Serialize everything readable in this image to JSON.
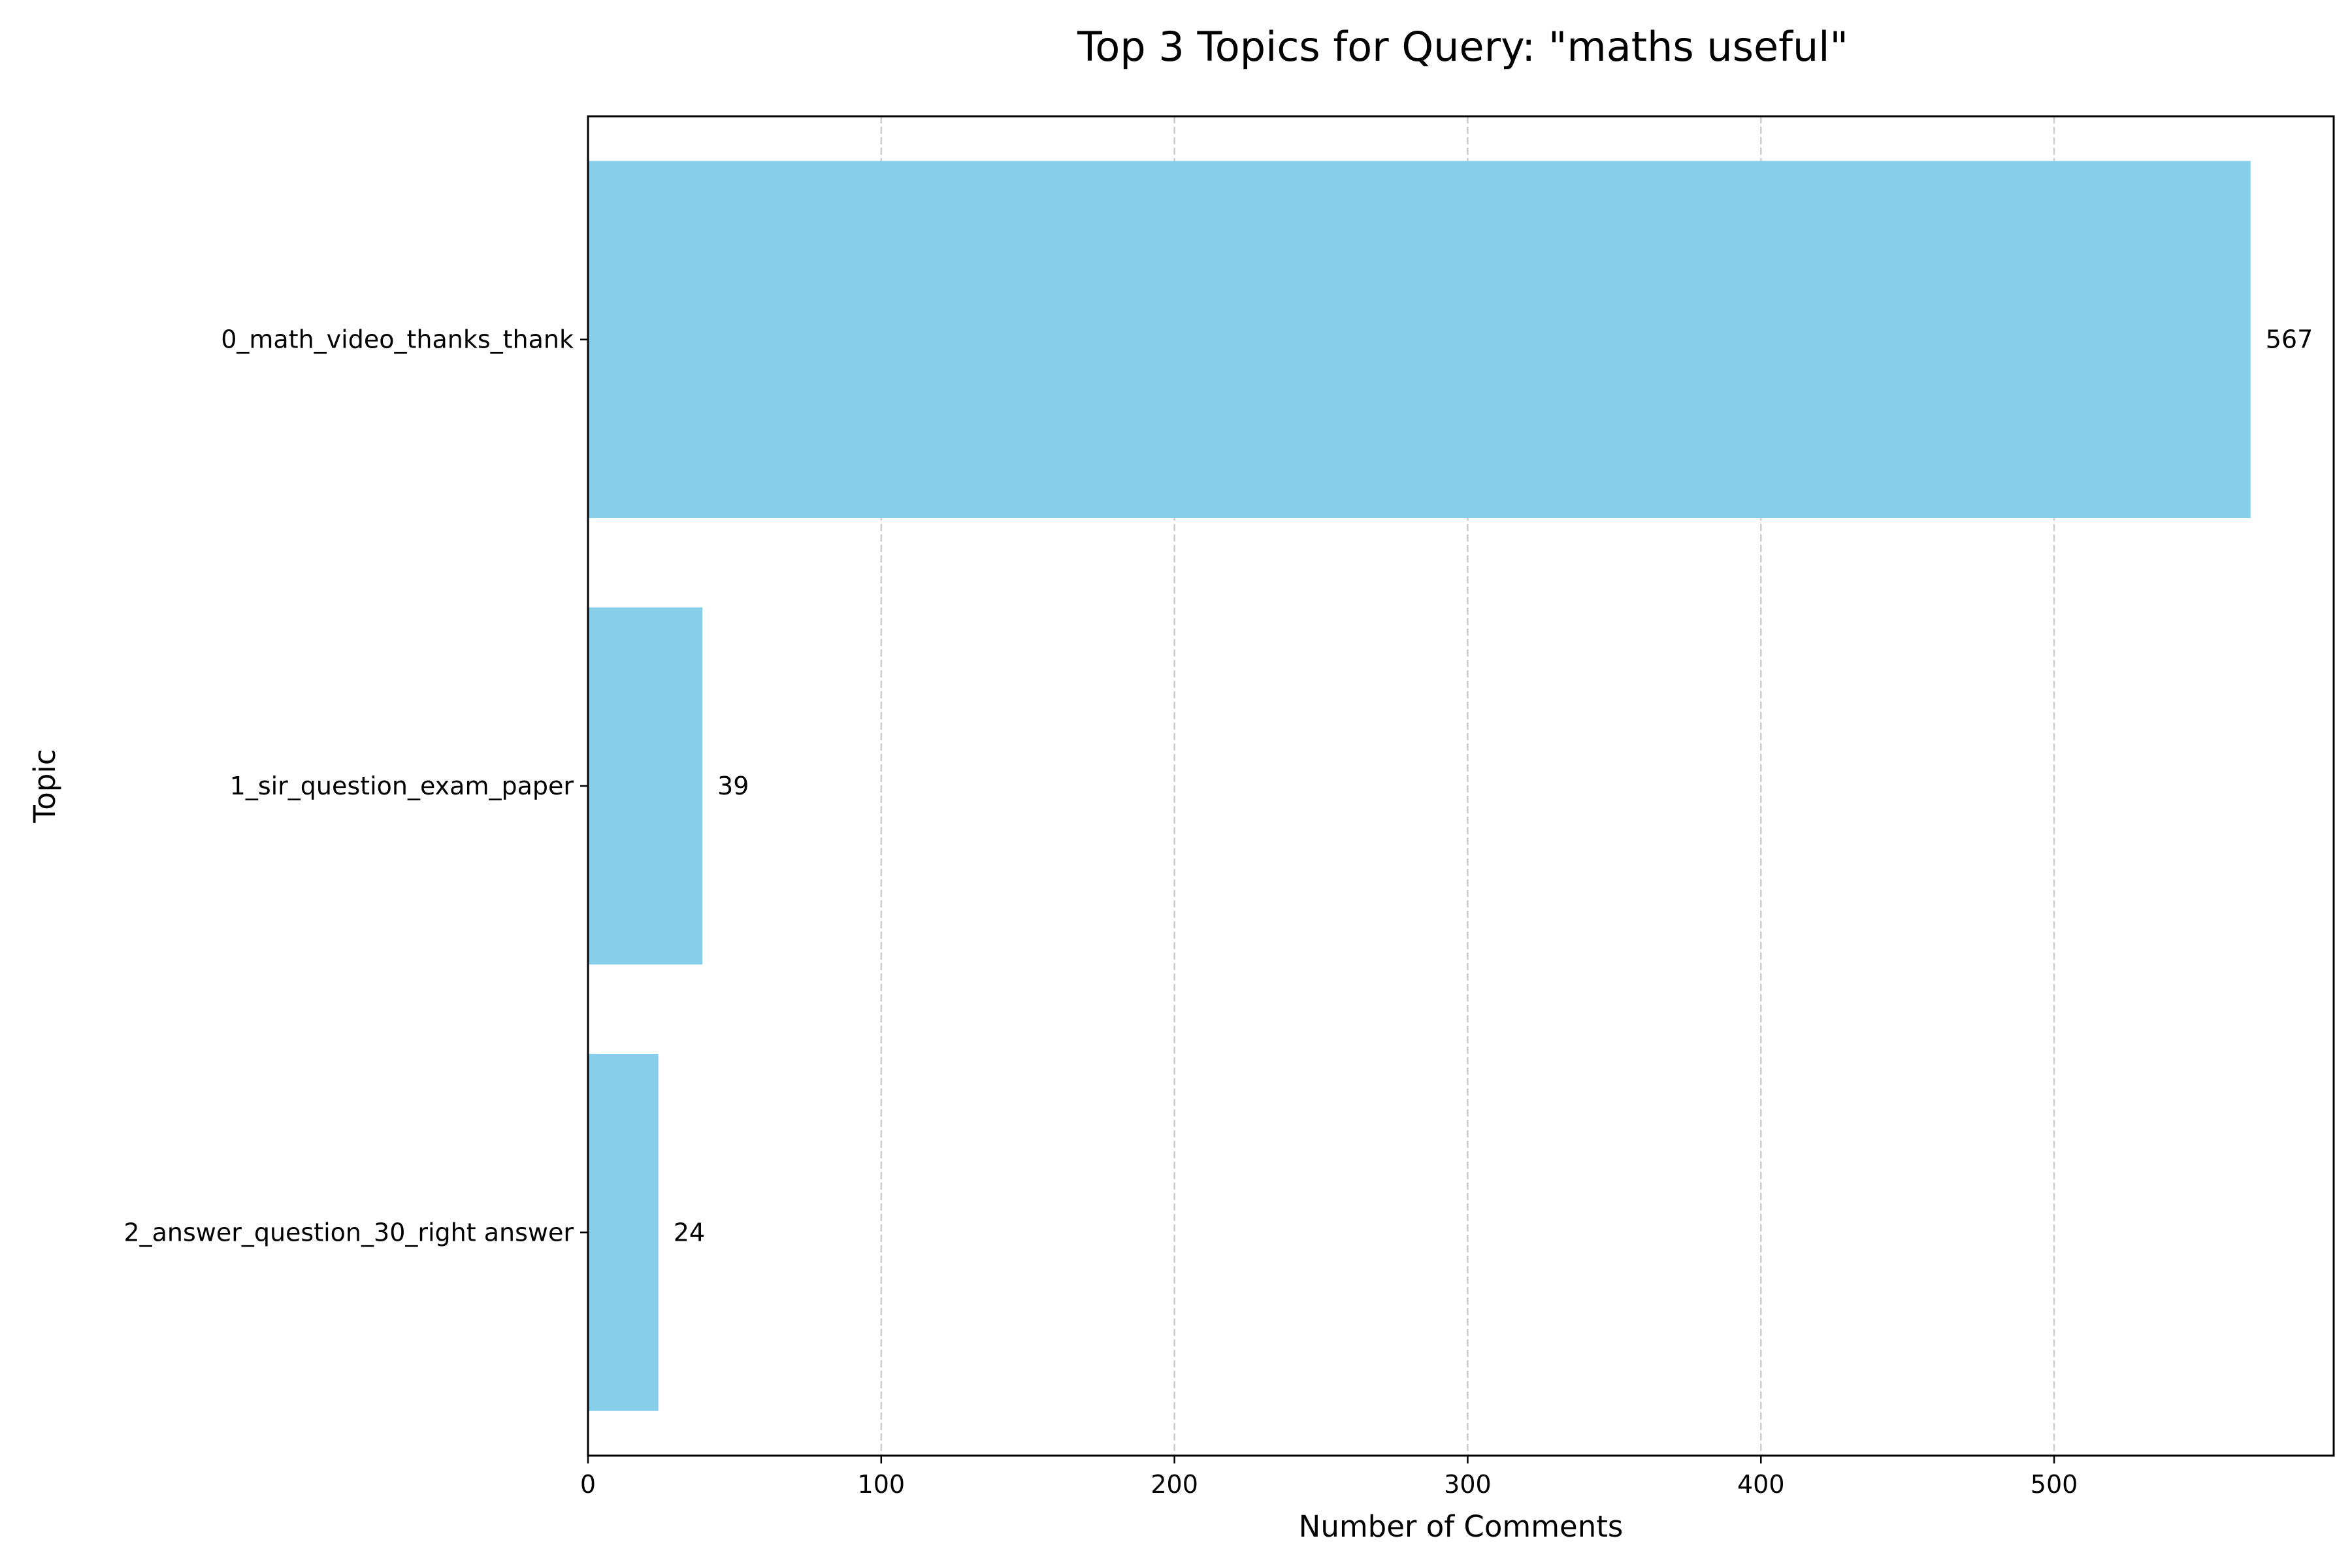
{
  "chart_data": {
    "type": "bar",
    "orientation": "horizontal",
    "title": "Top 3 Topics for Query: \"maths useful\"",
    "xlabel": "Number of Comments",
    "ylabel": "Topic",
    "categories": [
      "0_math_video_thanks_thank",
      "1_sir_question_exam_paper",
      "2_answer_question_30_right answer"
    ],
    "values": [
      567,
      39,
      24
    ],
    "data_labels": [
      "567",
      "39",
      "24"
    ],
    "xlim": [
      0,
      595.35
    ],
    "xticks": [
      0,
      100,
      200,
      300,
      400,
      500
    ],
    "xtick_labels": [
      "0",
      "100",
      "200",
      "300",
      "400",
      "500"
    ],
    "grid": "x-axis dashed",
    "bar_color": "#87CEEB",
    "grid_color": "#cccccc"
  }
}
